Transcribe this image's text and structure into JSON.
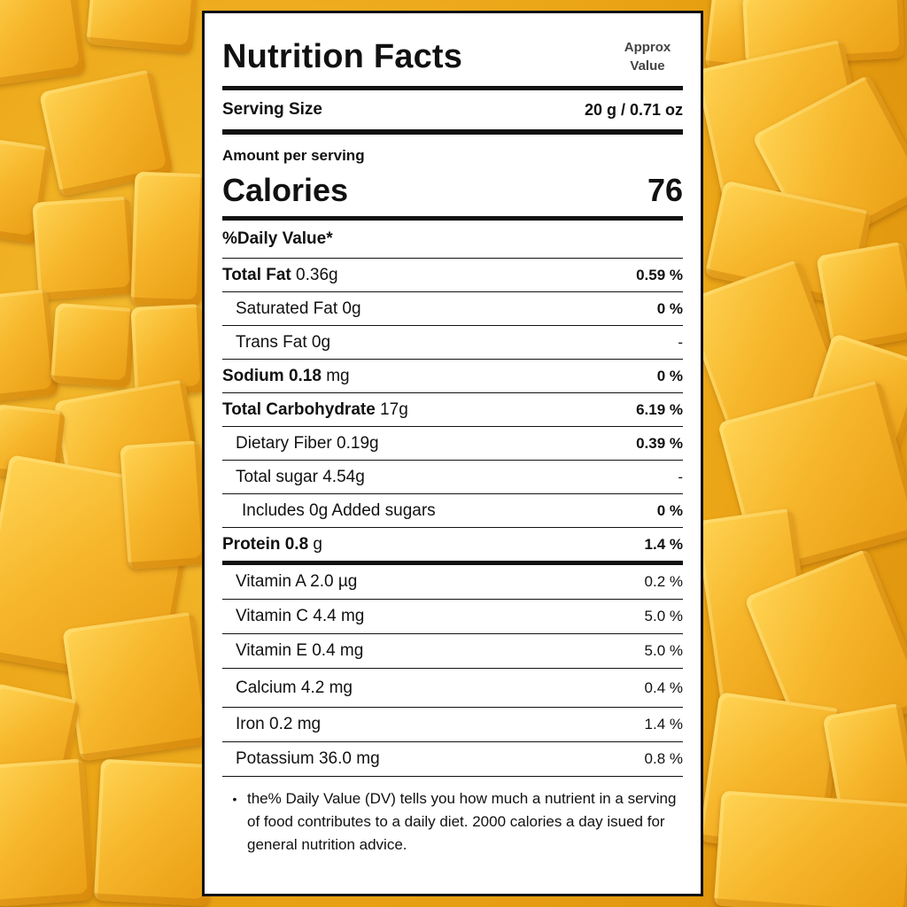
{
  "label": {
    "title": "Nutrition Facts",
    "approx_line1": "Approx",
    "approx_line2": "Value",
    "serving_label": "Serving Size",
    "serving_value": "20 g / 0.71 oz",
    "amount_per_serving": "Amount per serving",
    "calories_label": "Calories",
    "calories_value": "76",
    "daily_value_header": "%Daily Value*"
  },
  "nutrients": [
    {
      "bold": "Total Fat",
      "rest": " 0.36g",
      "dv": "0.59 %"
    },
    {
      "bold": "",
      "rest": "Saturated Fat 0g",
      "dv": "0 %"
    },
    {
      "bold": "",
      "rest": "Trans Fat 0g",
      "dv": "-"
    },
    {
      "bold": "Sodium 0.18",
      "rest": " mg",
      "dv": "0 %"
    },
    {
      "bold": "Total Carbohydrate",
      "rest": " 17g",
      "dv": "6.19 %"
    },
    {
      "bold": "",
      "rest": "Dietary Fiber 0.19g",
      "dv": "0.39 %"
    },
    {
      "bold": "",
      "rest": "Total sugar 4.54g",
      "dv": "-"
    },
    {
      "bold": "",
      "rest": "Includes 0g Added sugars",
      "dv": "0 %"
    },
    {
      "bold": "Protein 0.8",
      "rest": " g",
      "dv": "1.4 %"
    }
  ],
  "vitamins": [
    {
      "label": "Vitamin A 2.0 µg",
      "dv": "0.2 %"
    },
    {
      "label": "Vitamin C 4.4 mg",
      "dv": "5.0 %"
    },
    {
      "label": "Vitamin E 0.4 mg",
      "dv": "5.0 %"
    },
    {
      "label": "Calcium 4.2 mg",
      "dv": "0.4 %"
    },
    {
      "label": "Iron 0.2 mg",
      "dv": "1.4 %"
    },
    {
      "label": "Potassium 36.0 mg",
      "dv": "0.8 %"
    }
  ],
  "footnote": "the% Daily Value (DV) tells you how much a nutrient in a serving of food contributes to  a daily diet. 2000 calories a day isued for general nutrition advice.",
  "colors": {
    "panel": "#ffffff",
    "text": "#111111",
    "mango": "#f2b320"
  }
}
